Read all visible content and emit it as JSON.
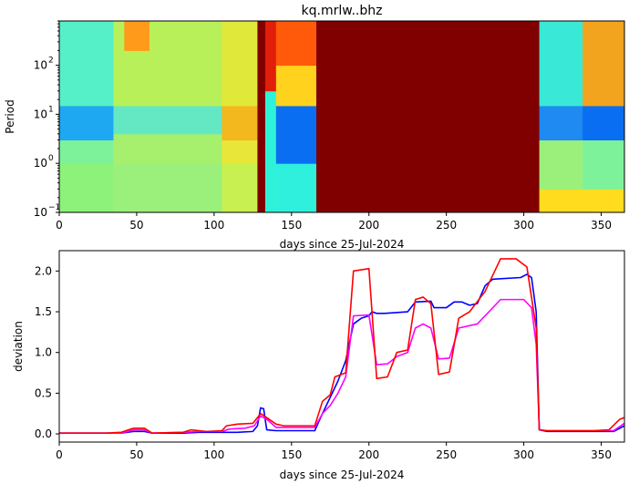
{
  "chart_data": [
    {
      "type": "heatmap",
      "title": "kq.mrlw..bhz",
      "xlabel": "days since 25-Jul-2024",
      "ylabel": "Period",
      "xlim": [
        0,
        365
      ],
      "ylim": [
        0.1,
        800
      ],
      "yscale": "log",
      "colormap": "jet",
      "xticks": [
        "0",
        "50",
        "100",
        "150",
        "200",
        "250",
        "300",
        "350"
      ],
      "yticks": [
        {
          "base": "10",
          "exp": "−1",
          "value": 0.1
        },
        {
          "base": "10",
          "exp": "0",
          "value": 1
        },
        {
          "base": "10",
          "exp": "1",
          "value": 10
        },
        {
          "base": "10",
          "exp": "2",
          "value": 100
        }
      ],
      "color_segments": [
        {
          "x0": 0,
          "x1": 35,
          "bands": [
            {
              "p0": 0.1,
              "p1": 1,
              "color": "#8cf27a"
            },
            {
              "p0": 1,
              "p1": 3,
              "color": "#7ef29a"
            },
            {
              "p0": 3,
              "p1": 15,
              "color": "#1ea8f2"
            },
            {
              "p0": 15,
              "p1": 800,
              "color": "#55f0c8"
            }
          ]
        },
        {
          "x0": 35,
          "x1": 105,
          "bands": [
            {
              "p0": 0.1,
              "p1": 1,
              "color": "#9af07a"
            },
            {
              "p0": 1,
              "p1": 4,
              "color": "#a6f06e"
            },
            {
              "p0": 4,
              "p1": 15,
              "color": "#64e8c4"
            },
            {
              "p0": 15,
              "p1": 800,
              "color": "#b8f05a"
            }
          ]
        },
        {
          "x0": 42,
          "x1": 58,
          "bands": [
            {
              "p0": 200,
              "p1": 800,
              "color": "#ff9a1a"
            }
          ]
        },
        {
          "x0": 105,
          "x1": 128,
          "bands": [
            {
              "p0": 0.1,
              "p1": 1,
              "color": "#c8f050"
            },
            {
              "p0": 1,
              "p1": 3,
              "color": "#e8e638"
            },
            {
              "p0": 3,
              "p1": 15,
              "color": "#f2b81e"
            },
            {
              "p0": 15,
              "p1": 800,
              "color": "#e0e83a"
            }
          ]
        },
        {
          "x0": 128,
          "x1": 133,
          "bands": [
            {
              "p0": 0.1,
              "p1": 800,
              "color": "#800000"
            }
          ]
        },
        {
          "x0": 133,
          "x1": 140,
          "bands": [
            {
              "p0": 0.1,
              "p1": 30,
              "color": "#2ef2d8"
            },
            {
              "p0": 30,
              "p1": 800,
              "color": "#e01e0a"
            }
          ]
        },
        {
          "x0": 140,
          "x1": 166,
          "bands": [
            {
              "p0": 0.1,
              "p1": 1,
              "color": "#2ef0dc"
            },
            {
              "p0": 1,
              "p1": 15,
              "color": "#0a6ef2"
            },
            {
              "p0": 15,
              "p1": 100,
              "color": "#ffd21e"
            },
            {
              "p0": 100,
              "p1": 800,
              "color": "#ff5a0a"
            }
          ]
        },
        {
          "x0": 166,
          "x1": 310,
          "bands": [
            {
              "p0": 0.1,
              "p1": 800,
              "color": "#800000"
            }
          ]
        },
        {
          "x0": 310,
          "x1": 338,
          "bands": [
            {
              "p0": 0.1,
              "p1": 0.3,
              "color": "#ffdc1e"
            },
            {
              "p0": 0.3,
              "p1": 3,
              "color": "#9af07a"
            },
            {
              "p0": 3,
              "p1": 15,
              "color": "#1e8af2"
            },
            {
              "p0": 15,
              "p1": 800,
              "color": "#3ae8d8"
            }
          ]
        },
        {
          "x0": 338,
          "x1": 365,
          "bands": [
            {
              "p0": 0.1,
              "p1": 0.3,
              "color": "#ffdc1e"
            },
            {
              "p0": 0.3,
              "p1": 3,
              "color": "#7ef29a"
            },
            {
              "p0": 3,
              "p1": 15,
              "color": "#0a6ef2"
            },
            {
              "p0": 15,
              "p1": 800,
              "color": "#f2a41e"
            }
          ]
        }
      ]
    },
    {
      "type": "line",
      "title": "",
      "xlabel": "days since 25-Jul-2024",
      "ylabel": "deviation",
      "xlim": [
        0,
        365
      ],
      "ylim": [
        -0.1,
        2.25
      ],
      "xticks": [
        "0",
        "50",
        "100",
        "150",
        "200",
        "250",
        "300",
        "350"
      ],
      "yticks": [
        "0.0",
        "0.5",
        "1.0",
        "1.5",
        "2.0"
      ],
      "series": [
        {
          "color": "#0000ff",
          "points": [
            [
              0,
              0.01
            ],
            [
              40,
              0.01
            ],
            [
              48,
              0.03
            ],
            [
              55,
              0.03
            ],
            [
              60,
              0.01
            ],
            [
              80,
              0.01
            ],
            [
              90,
              0.02
            ],
            [
              105,
              0.02
            ],
            [
              115,
              0.02
            ],
            [
              125,
              0.03
            ],
            [
              128,
              0.1
            ],
            [
              130,
              0.32
            ],
            [
              132,
              0.31
            ],
            [
              134,
              0.05
            ],
            [
              140,
              0.04
            ],
            [
              165,
              0.04
            ],
            [
              170,
              0.25
            ],
            [
              175,
              0.45
            ],
            [
              180,
              0.65
            ],
            [
              185,
              0.9
            ],
            [
              190,
              1.35
            ],
            [
              195,
              1.42
            ],
            [
              200,
              1.45
            ],
            [
              202,
              1.5
            ],
            [
              205,
              1.48
            ],
            [
              210,
              1.48
            ],
            [
              225,
              1.5
            ],
            [
              230,
              1.62
            ],
            [
              240,
              1.63
            ],
            [
              242,
              1.55
            ],
            [
              250,
              1.55
            ],
            [
              255,
              1.62
            ],
            [
              260,
              1.62
            ],
            [
              265,
              1.58
            ],
            [
              270,
              1.6
            ],
            [
              275,
              1.82
            ],
            [
              280,
              1.9
            ],
            [
              298,
              1.92
            ],
            [
              302,
              1.96
            ],
            [
              305,
              1.92
            ],
            [
              308,
              1.5
            ],
            [
              310,
              0.05
            ],
            [
              315,
              0.03
            ],
            [
              345,
              0.03
            ],
            [
              358,
              0.03
            ],
            [
              365,
              0.1
            ]
          ]
        },
        {
          "color": "#ff00ff",
          "points": [
            [
              0,
              0.01
            ],
            [
              40,
              0.01
            ],
            [
              48,
              0.05
            ],
            [
              55,
              0.05
            ],
            [
              60,
              0.01
            ],
            [
              80,
              0.02
            ],
            [
              90,
              0.03
            ],
            [
              105,
              0.03
            ],
            [
              110,
              0.06
            ],
            [
              120,
              0.07
            ],
            [
              126,
              0.1
            ],
            [
              130,
              0.22
            ],
            [
              134,
              0.18
            ],
            [
              140,
              0.08
            ],
            [
              165,
              0.08
            ],
            [
              170,
              0.25
            ],
            [
              175,
              0.35
            ],
            [
              180,
              0.5
            ],
            [
              185,
              0.7
            ],
            [
              190,
              1.45
            ],
            [
              200,
              1.46
            ],
            [
              205,
              0.85
            ],
            [
              212,
              0.86
            ],
            [
              218,
              0.95
            ],
            [
              225,
              1.0
            ],
            [
              230,
              1.3
            ],
            [
              235,
              1.35
            ],
            [
              240,
              1.3
            ],
            [
              245,
              0.92
            ],
            [
              252,
              0.93
            ],
            [
              258,
              1.3
            ],
            [
              270,
              1.35
            ],
            [
              275,
              1.45
            ],
            [
              285,
              1.65
            ],
            [
              300,
              1.65
            ],
            [
              305,
              1.55
            ],
            [
              308,
              1.1
            ],
            [
              310,
              0.05
            ],
            [
              315,
              0.04
            ],
            [
              350,
              0.04
            ],
            [
              358,
              0.04
            ],
            [
              365,
              0.13
            ]
          ]
        },
        {
          "color": "#ff0000",
          "points": [
            [
              0,
              0.01
            ],
            [
              30,
              0.01
            ],
            [
              40,
              0.02
            ],
            [
              48,
              0.07
            ],
            [
              55,
              0.07
            ],
            [
              60,
              0.01
            ],
            [
              80,
              0.02
            ],
            [
              85,
              0.05
            ],
            [
              95,
              0.03
            ],
            [
              105,
              0.04
            ],
            [
              108,
              0.1
            ],
            [
              115,
              0.12
            ],
            [
              125,
              0.13
            ],
            [
              128,
              0.2
            ],
            [
              130,
              0.25
            ],
            [
              134,
              0.2
            ],
            [
              140,
              0.12
            ],
            [
              145,
              0.1
            ],
            [
              165,
              0.1
            ],
            [
              170,
              0.4
            ],
            [
              175,
              0.48
            ],
            [
              178,
              0.7
            ],
            [
              185,
              0.75
            ],
            [
              190,
              2.0
            ],
            [
              200,
              2.03
            ],
            [
              205,
              0.68
            ],
            [
              212,
              0.7
            ],
            [
              218,
              1.0
            ],
            [
              225,
              1.03
            ],
            [
              230,
              1.65
            ],
            [
              235,
              1.68
            ],
            [
              240,
              1.6
            ],
            [
              245,
              0.73
            ],
            [
              252,
              0.76
            ],
            [
              258,
              1.42
            ],
            [
              265,
              1.5
            ],
            [
              275,
              1.75
            ],
            [
              285,
              2.15
            ],
            [
              295,
              2.15
            ],
            [
              302,
              2.05
            ],
            [
              308,
              1.3
            ],
            [
              310,
              0.05
            ],
            [
              315,
              0.04
            ],
            [
              345,
              0.04
            ],
            [
              355,
              0.05
            ],
            [
              362,
              0.18
            ],
            [
              365,
              0.2
            ]
          ]
        }
      ]
    }
  ]
}
